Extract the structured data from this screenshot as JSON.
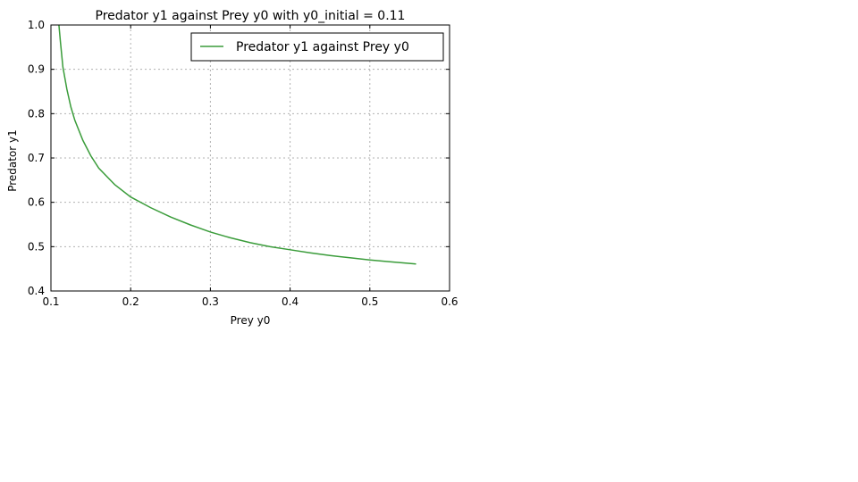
{
  "chart_data": {
    "type": "line",
    "title": "Predator y1 against Prey y0 with y0_initial = 0.11",
    "xlabel": "Prey y0",
    "ylabel": "Predator y1",
    "xlim": [
      0.1,
      0.6
    ],
    "ylim": [
      0.4,
      1.0
    ],
    "xticks": [
      "0.1",
      "0.2",
      "0.3",
      "0.4",
      "0.5",
      "0.6"
    ],
    "yticks": [
      "0.4",
      "0.5",
      "0.6",
      "0.7",
      "0.8",
      "0.9",
      "1.0"
    ],
    "grid": true,
    "legend_position": "top-right",
    "series": [
      {
        "name": "Predator y1 against Prey y0",
        "color": "#3a9c3a",
        "x": [
          0.11,
          0.112,
          0.115,
          0.12,
          0.125,
          0.13,
          0.14,
          0.15,
          0.16,
          0.18,
          0.2,
          0.225,
          0.25,
          0.275,
          0.3,
          0.325,
          0.35,
          0.375,
          0.4,
          0.425,
          0.45,
          0.475,
          0.5,
          0.525,
          0.545,
          0.558
        ],
        "y": [
          1.0,
          0.96,
          0.905,
          0.855,
          0.815,
          0.785,
          0.74,
          0.705,
          0.677,
          0.64,
          0.612,
          0.588,
          0.567,
          0.549,
          0.533,
          0.52,
          0.509,
          0.5,
          0.493,
          0.486,
          0.48,
          0.475,
          0.47,
          0.466,
          0.463,
          0.461
        ]
      }
    ]
  }
}
